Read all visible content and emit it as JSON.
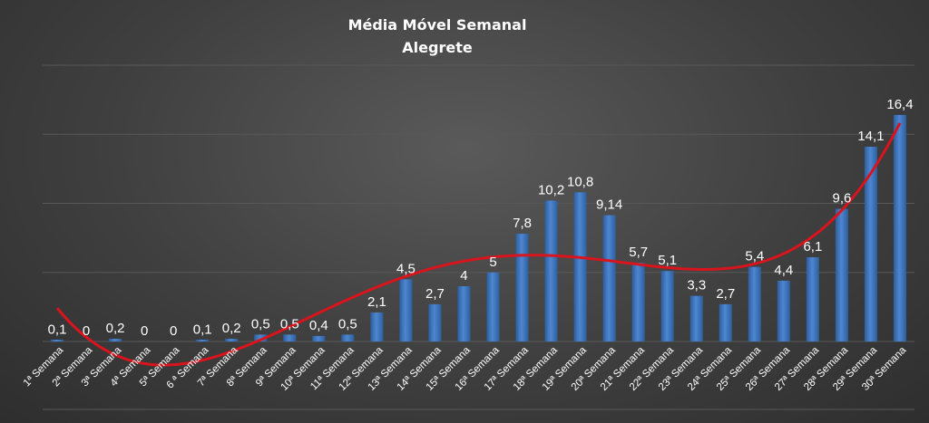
{
  "chart_data": {
    "type": "bar",
    "title": "Média  Móvel  Semanal",
    "subtitle": "Alegrete",
    "categories": [
      "1ª Semana",
      "2ª Semana",
      "3ª Semana",
      "4ª Semana",
      "5ª Semana",
      "6 ª Semana",
      "7ª Semana",
      "8ª Semana",
      "9ª Semana",
      "10ª Semana",
      "11ª Semana",
      "12ª Semana",
      "13ª Semana",
      "14ª Semana",
      "15ª Semana",
      "16ª Semana",
      "17ª Semana",
      "18ª Semana",
      "19ª Semana",
      "20ª Semana",
      "21ª Semana",
      "22ª Semana",
      "23ª Semana",
      "24ª Semana",
      "25ª Semana",
      "26ª Semana",
      "27ª Semana",
      "28ª Semana",
      "29ª Semana",
      "30ª Semana"
    ],
    "values": [
      0.1,
      0,
      0.2,
      0,
      0,
      0.1,
      0.2,
      0.5,
      0.5,
      0.4,
      0.5,
      2.1,
      4.5,
      2.7,
      4,
      5,
      7.8,
      10.2,
      10.8,
      9.14,
      5.7,
      5.1,
      3.3,
      2.7,
      5.4,
      4.4,
      6.1,
      9.6,
      14.1,
      16.4
    ],
    "value_labels": [
      "0,1",
      "0",
      "0,2",
      "0",
      "0",
      "0,1",
      "0,2",
      "0,5",
      "0,5",
      "0,4",
      "0,5",
      "2,1",
      "4,5",
      "2,7",
      "4",
      "5",
      "7,8",
      "10,2",
      "10,8",
      "9,14",
      "5,7",
      "5,1",
      "3,3",
      "2,7",
      "5,4",
      "4,4",
      "6,1",
      "9,6",
      "14,1",
      "16,4"
    ],
    "trendline": {
      "type": "polynomial",
      "color": "#d9141c"
    },
    "ylim": [
      0,
      20
    ],
    "grid": true,
    "legend": "none",
    "colors": {
      "bar": "#4f86d0",
      "bar_dark": "#2c5f9e",
      "trend": "#d9141c",
      "text": "#ffffff"
    }
  }
}
